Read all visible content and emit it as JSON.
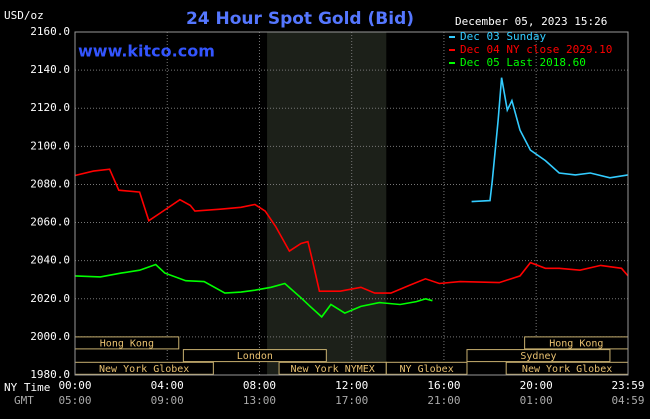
{
  "chart_data": {
    "type": "line",
    "title": "24 Hour Spot Gold (Bid)",
    "timestamp": "December 05, 2023 15:26",
    "watermark": "www.kitco.com",
    "y_label": "USD/oz",
    "x_row_labels": [
      "NY Time",
      "GMT"
    ],
    "xlim": [
      0,
      23.983
    ],
    "xticks": [
      {
        "value": 0,
        "label": "00:00"
      },
      {
        "value": 4,
        "label": "04:00"
      },
      {
        "value": 8,
        "label": "08:00"
      },
      {
        "value": 12,
        "label": "12:00"
      },
      {
        "value": 16,
        "label": "16:00"
      },
      {
        "value": 20,
        "label": "20:00"
      },
      {
        "value": 23.983,
        "label": "23:59"
      }
    ],
    "gmt_labels": [
      "05:00",
      "09:00",
      "13:00",
      "17:00",
      "21:00",
      "01:00",
      "04:59"
    ],
    "ylim": [
      1980,
      2160
    ],
    "yticks": [
      {
        "value": 1980,
        "label": "1980.0"
      },
      {
        "value": 2000,
        "label": "2000.0"
      },
      {
        "value": 2020,
        "label": "2020.0"
      },
      {
        "value": 2040,
        "label": "2040.0"
      },
      {
        "value": 2060,
        "label": "2060.0"
      },
      {
        "value": 2080,
        "label": "2080.0"
      },
      {
        "value": 2100,
        "label": "2100.0"
      },
      {
        "value": 2120,
        "label": "2120.0"
      },
      {
        "value": 2140,
        "label": "2140.0"
      },
      {
        "value": 2160,
        "label": "2160.0"
      }
    ],
    "grid": true,
    "legend": "top-right",
    "shaded_region": [
      8.33,
      13.5
    ],
    "sessions": [
      [
        {
          "label": "Hong Kong",
          "start": 0,
          "end": 4.5
        },
        {
          "label": "Hong Kong",
          "start": 19.5,
          "end": 23.983
        }
      ],
      [
        {
          "label": "London",
          "start": 4.7,
          "end": 10.9
        },
        {
          "label": "Sydney",
          "start": 17,
          "end": 23.2
        }
      ],
      [
        {
          "label": "New York Globex",
          "start": 0,
          "end": 6
        },
        {
          "label": "New York NYMEX",
          "start": 8.85,
          "end": 13.5
        },
        {
          "label": "NY Globex",
          "start": 13.5,
          "end": 17
        },
        {
          "label": "New York Globex",
          "start": 18.7,
          "end": 23.983
        }
      ]
    ],
    "series": [
      {
        "name": "Dec 03 Sunday",
        "color": "#33ccff",
        "x": [
          17.2,
          18,
          18.1,
          18.35,
          18.5,
          18.75,
          18.95,
          19.3,
          19.75,
          20.4,
          21,
          21.7,
          22.35,
          23.2,
          23.983
        ],
        "values": [
          2071,
          2071.5,
          2082,
          2113.5,
          2136,
          2119,
          2124,
          2108.5,
          2098,
          2092.5,
          2086,
          2085,
          2086,
          2083.5,
          2085
        ]
      },
      {
        "name": "Dec 04 NY close 2029.10",
        "color": "#ff0000",
        "x": [
          0,
          0.8,
          1.5,
          1.9,
          2.8,
          3.2,
          3.7,
          4.55,
          5,
          5.2,
          6.3,
          7.2,
          7.8,
          8.25,
          8.7,
          9.3,
          9.8,
          10.1,
          10.3,
          10.6,
          11.5,
          12.4,
          13,
          13.7,
          14.5,
          15.2,
          15.8,
          16.7,
          18.4,
          19.3,
          19.75,
          20.4,
          21,
          21.9,
          22.8,
          23.7,
          23.983
        ],
        "values": [
          2084.7,
          2087,
          2088,
          2077,
          2076,
          2061,
          2065,
          2072,
          2069,
          2066,
          2067,
          2068,
          2069.5,
          2066,
          2058,
          2045,
          2049,
          2050,
          2040,
          2024,
          2024,
          2026,
          2023,
          2023,
          2027,
          2030.5,
          2028,
          2029,
          2028.5,
          2032,
          2039,
          2036,
          2036,
          2035,
          2037.5,
          2036,
          2032
        ]
      },
      {
        "name": "Dec 05 Last 2018.60",
        "color": "#00ff00",
        "x": [
          0,
          1.1,
          2,
          2.8,
          3.5,
          3.9,
          4.8,
          5.6,
          6.5,
          7.2,
          7.8,
          8.5,
          9.1,
          9.8,
          10.2,
          10.7,
          11.1,
          11.7,
          12.4,
          13.2,
          14.1,
          14.8,
          15.2,
          15.5
        ],
        "values": [
          2032,
          2031.5,
          2033.5,
          2035,
          2038,
          2033.5,
          2029.5,
          2029,
          2023,
          2023.5,
          2024.5,
          2026,
          2028,
          2020.5,
          2016,
          2010.5,
          2017,
          2012.5,
          2016,
          2018,
          2017,
          2018.5,
          2020,
          2019
        ]
      }
    ]
  }
}
